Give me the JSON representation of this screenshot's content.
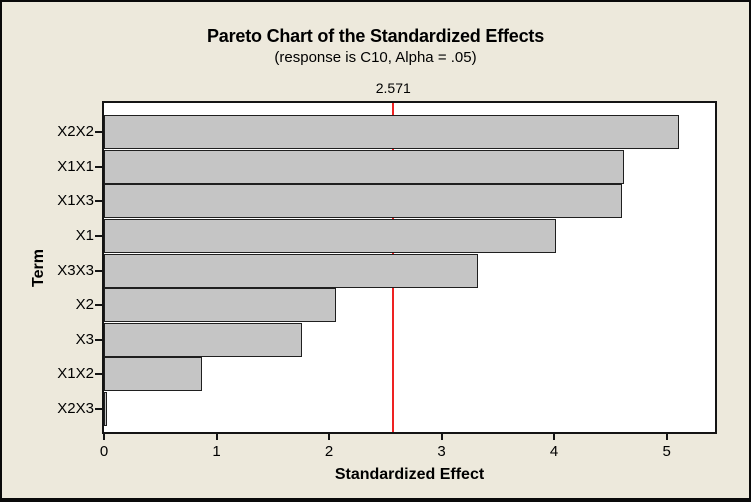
{
  "chart_data": {
    "type": "bar",
    "orientation": "horizontal",
    "title": "Pareto Chart of the Standardized Effects",
    "subtitle": "(response is C10, Alpha = .05)",
    "xlabel": "Standardized Effect",
    "ylabel": "Term",
    "categories": [
      "X2X2",
      "X1X1",
      "X1X3",
      "X1",
      "X3X3",
      "X2",
      "X3",
      "X1X2",
      "X2X3"
    ],
    "values": [
      5.11,
      4.62,
      4.6,
      4.02,
      3.32,
      2.06,
      1.76,
      0.87,
      0.03
    ],
    "xticks": [
      "0",
      "1",
      "2",
      "3",
      "4",
      "5"
    ],
    "xlim": [
      0,
      5.43
    ],
    "grid": false,
    "legend": "none",
    "reference_line": {
      "value": 2.571,
      "label": "2.571",
      "color": "#EE2222"
    },
    "colors": {
      "bar_fill": "#C5C5C5",
      "bar_border": "#1F1F1F",
      "plot_background": "#FFFFFF",
      "canvas_background": "#EDE9DC",
      "text": "#000000"
    }
  }
}
